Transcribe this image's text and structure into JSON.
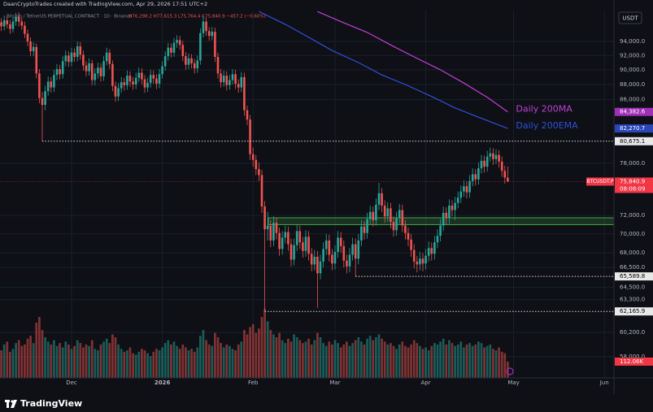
{
  "header": {
    "watermark": "DaanCryptoTrades created with TradingView.com, Apr 29, 2026 17:51 UTC+2",
    "symbol": "Bitcoin / TetherUS PERPETUAL CONTRACT · 1D · Binance",
    "ohlc": "O76,298.2 H77,615.3 L75,764.4 C75,840.9 −457.2 (−0.60%)",
    "currency": "USDT"
  },
  "footer": {
    "logo": "TradingView"
  },
  "chart_data": {
    "type": "candlestick",
    "log_scale": true,
    "grid": true,
    "up_color": "#26a69a",
    "down_color": "#ef5350",
    "xlim": [
      0.56,
      210.28
    ],
    "xticks": [
      {
        "value": 25,
        "label": "Dec"
      },
      {
        "value": 56,
        "label": "2026"
      },
      {
        "value": 87,
        "label": "Feb"
      },
      {
        "value": 115,
        "label": "Mar"
      },
      {
        "value": 146,
        "label": "Apr"
      },
      {
        "value": 176,
        "label": "May"
      },
      {
        "value": 207,
        "label": "Jun"
      }
    ],
    "ylim": [
      56150,
      98550
    ],
    "yticks": [
      {
        "value": 94000,
        "label": "94,000.0"
      },
      {
        "value": 92000,
        "label": "92,000.0"
      },
      {
        "value": 90000,
        "label": "90,000.0"
      },
      {
        "value": 88000,
        "label": "88,000.0"
      },
      {
        "value": 86000,
        "label": "86,000.0"
      },
      {
        "value": 78000,
        "label": "78,000.0"
      },
      {
        "value": 72000,
        "label": "72,000.0"
      },
      {
        "value": 70000,
        "label": "70,000.0"
      },
      {
        "value": 68000,
        "label": "68,000.0"
      },
      {
        "value": 66500,
        "label": "66,500.0"
      },
      {
        "value": 64500,
        "label": "64,500.0"
      },
      {
        "value": 63300,
        "label": "63,300.0"
      },
      {
        "value": 60200,
        "label": "60,200.0"
      },
      {
        "value": 58000,
        "label": "58,000.0"
      }
    ],
    "candles": {
      "open": [
        97300,
        96800,
        96200,
        97100,
        96500,
        95800,
        96900,
        97600,
        96900,
        96300,
        95100,
        94000,
        92600,
        93200,
        89500,
        86200,
        85300,
        87100,
        88400,
        87600,
        89300,
        90100,
        89400,
        91200,
        92000,
        91100,
        92400,
        91800,
        93300,
        92100,
        90600,
        89800,
        90900,
        88600,
        89500,
        90300,
        89100,
        91200,
        92400,
        90800,
        87800,
        86400,
        87500,
        88300,
        87900,
        89200,
        88400,
        88000,
        88900,
        89600,
        88700,
        87600,
        88200,
        89300,
        88800,
        88100,
        89400,
        90500,
        91900,
        93100,
        92400,
        93800,
        94200,
        93500,
        91900,
        90700,
        91600,
        90900,
        90200,
        91300,
        95200,
        96900,
        95500,
        94800,
        95400,
        91800,
        89500,
        88300,
        89200,
        87900,
        88600,
        89400,
        88100,
        87600,
        89000,
        84600,
        83400,
        79100,
        78400,
        77300,
        76600,
        73000,
        70500,
        70900,
        69300,
        71200,
        70100,
        68400,
        69600,
        70200,
        68900,
        67300,
        68800,
        70300,
        69100,
        68200,
        69700,
        67900,
        66800,
        67600,
        65900,
        67100,
        68400,
        69300,
        67800,
        66900,
        68100,
        69600,
        68700,
        67200,
        66600,
        67800,
        68900,
        67400,
        69300,
        70800,
        70100,
        71600,
        72400,
        71500,
        73200,
        74500,
        73100,
        71900,
        72800,
        71300,
        70400,
        71700,
        72600,
        70900,
        70100,
        69400,
        68300,
        67100,
        66800,
        67400,
        66900,
        67700,
        68500,
        67900,
        69100,
        69800,
        70900,
        72300,
        71700,
        73100,
        72600,
        73400,
        74000,
        74700,
        75300,
        74600,
        75900,
        76700,
        76100,
        77400,
        78300,
        77600,
        78800,
        79200,
        78500,
        79000,
        78200,
        77100,
        76298.2
      ],
      "high": [
        97900,
        97400,
        97800,
        97700,
        97100,
        97500,
        98200,
        98300,
        97500,
        96900,
        95700,
        94600,
        93900,
        93700,
        90100,
        87000,
        87800,
        89100,
        89000,
        90000,
        90800,
        90700,
        91900,
        92700,
        92600,
        93100,
        93000,
        94000,
        93900,
        92700,
        91200,
        91600,
        91400,
        90200,
        91000,
        90900,
        91900,
        93100,
        92900,
        91300,
        88400,
        88200,
        89000,
        88900,
        89900,
        89800,
        89000,
        89600,
        90300,
        90200,
        89300,
        88900,
        90000,
        89900,
        89400,
        90100,
        91200,
        92600,
        93800,
        93700,
        94500,
        94900,
        94800,
        94100,
        92500,
        92300,
        92200,
        91500,
        92000,
        95900,
        97800,
        97500,
        96100,
        96100,
        96000,
        92400,
        90100,
        89900,
        89800,
        89300,
        90100,
        90000,
        88700,
        89700,
        89600,
        85200,
        84000,
        79900,
        79000,
        78100,
        77200,
        73600,
        72400,
        71500,
        71900,
        71800,
        70700,
        70300,
        70900,
        70800,
        69500,
        69500,
        71000,
        70900,
        69700,
        70400,
        70300,
        68500,
        68300,
        68200,
        67800,
        69100,
        70000,
        69900,
        68400,
        68800,
        70300,
        70200,
        69300,
        67800,
        68500,
        69600,
        69500,
        70000,
        71500,
        71400,
        72300,
        73100,
        73000,
        73900,
        75700,
        75100,
        73700,
        73500,
        73400,
        71900,
        72400,
        73300,
        73200,
        71500,
        70700,
        70000,
        68900,
        67700,
        68100,
        68000,
        68400,
        69200,
        69100,
        69800,
        70500,
        71600,
        73000,
        72900,
        73800,
        73700,
        74100,
        74700,
        75400,
        76000,
        75900,
        76600,
        77400,
        77300,
        78100,
        79000,
        78900,
        79500,
        79900,
        79800,
        79700,
        79600,
        78800,
        77700,
        77615.3
      ],
      "low": [
        96100,
        95500,
        95600,
        95900,
        95100,
        95300,
        96300,
        96200,
        95700,
        94500,
        93300,
        91900,
        91900,
        88800,
        85500,
        80675.1,
        84600,
        86500,
        86900,
        87000,
        88600,
        88700,
        88800,
        90500,
        90400,
        90500,
        91100,
        91200,
        91400,
        89900,
        89100,
        89200,
        87900,
        87900,
        88800,
        88400,
        88500,
        90600,
        90100,
        87100,
        85700,
        85800,
        86900,
        87200,
        87300,
        87700,
        87300,
        87400,
        88300,
        88000,
        86900,
        87000,
        87600,
        88100,
        87400,
        87500,
        88800,
        89900,
        91300,
        91700,
        91800,
        93100,
        92800,
        91200,
        90000,
        90100,
        90200,
        89500,
        89600,
        90700,
        94600,
        94800,
        94100,
        94200,
        91100,
        88800,
        87600,
        87700,
        87200,
        87300,
        88000,
        87400,
        86900,
        87000,
        83900,
        82700,
        78400,
        77600,
        76600,
        75900,
        72300,
        62165.9,
        69300,
        68600,
        68700,
        69400,
        67700,
        67800,
        69000,
        68200,
        66600,
        66700,
        68200,
        68400,
        67500,
        67600,
        67200,
        66100,
        66200,
        62500,
        65300,
        66500,
        67800,
        67100,
        66200,
        66300,
        67500,
        68000,
        66500,
        65900,
        66000,
        67200,
        65589.8,
        66800,
        68700,
        69400,
        69500,
        71000,
        70800,
        70900,
        72600,
        72400,
        71200,
        71300,
        70600,
        69700,
        69800,
        71100,
        70200,
        69400,
        68700,
        67600,
        66400,
        66000,
        66200,
        66100,
        66300,
        67100,
        67200,
        67300,
        68500,
        69200,
        70300,
        71000,
        71100,
        71900,
        71500,
        72800,
        73400,
        74100,
        73900,
        74000,
        75300,
        75400,
        75500,
        76800,
        76900,
        77000,
        78200,
        77800,
        77900,
        77500,
        76400,
        75600,
        75764.4
      ],
      "close": [
        96800,
        96200,
        97100,
        96500,
        95800,
        96900,
        97600,
        96900,
        96300,
        95100,
        94000,
        92600,
        93200,
        89500,
        86200,
        85300,
        87100,
        88400,
        87600,
        89300,
        90100,
        89400,
        91200,
        92000,
        91100,
        92400,
        91800,
        93300,
        92100,
        90600,
        89800,
        90900,
        88600,
        89500,
        90300,
        89100,
        91200,
        92400,
        90800,
        87800,
        86400,
        87500,
        88300,
        87900,
        89200,
        88400,
        88000,
        88900,
        89600,
        88700,
        87600,
        88200,
        89300,
        88800,
        88100,
        89400,
        90500,
        91900,
        93100,
        92400,
        93800,
        94200,
        93500,
        91900,
        90700,
        91600,
        90900,
        90200,
        91300,
        95200,
        96900,
        95500,
        94800,
        95400,
        91800,
        89500,
        88300,
        89200,
        87900,
        88600,
        89400,
        88100,
        87600,
        89000,
        84600,
        83400,
        79100,
        78400,
        77300,
        76600,
        73000,
        70500,
        70900,
        69300,
        71200,
        70100,
        68400,
        69600,
        70200,
        68900,
        67300,
        68800,
        70300,
        69100,
        68200,
        69700,
        67900,
        66800,
        67600,
        65900,
        67100,
        68400,
        69300,
        67800,
        66900,
        68100,
        69600,
        68700,
        67200,
        66600,
        67800,
        68900,
        67400,
        69300,
        70800,
        70100,
        71600,
        72400,
        71500,
        73200,
        74500,
        73100,
        71900,
        72800,
        71300,
        70400,
        71700,
        72600,
        70900,
        70100,
        69400,
        68300,
        67100,
        66800,
        67400,
        66900,
        67700,
        68500,
        67900,
        69100,
        69800,
        70900,
        72300,
        71700,
        73100,
        72600,
        73400,
        74000,
        74700,
        75300,
        74600,
        75900,
        76700,
        76100,
        77400,
        78300,
        77600,
        78800,
        79200,
        78500,
        79000,
        78200,
        77100,
        76298.1,
        75840.9
      ]
    },
    "volume": {
      "ylim": [
        0,
        560
      ],
      "last_label": "112.06K",
      "label_color": "#f23645",
      "values": [
        210,
        190,
        230,
        250,
        180,
        200,
        240,
        260,
        220,
        230,
        270,
        290,
        240,
        380,
        420,
        330,
        280,
        250,
        230,
        260,
        220,
        240,
        210,
        250,
        230,
        200,
        220,
        260,
        240,
        210,
        230,
        220,
        260,
        200,
        190,
        230,
        250,
        270,
        240,
        300,
        280,
        230,
        200,
        180,
        190,
        210,
        170,
        160,
        180,
        200,
        190,
        170,
        150,
        180,
        200,
        190,
        210,
        240,
        260,
        230,
        250,
        220,
        200,
        230,
        210,
        190,
        200,
        180,
        210,
        290,
        330,
        260,
        230,
        220,
        310,
        280,
        240,
        210,
        230,
        220,
        200,
        190,
        230,
        250,
        330,
        300,
        350,
        370,
        310,
        340,
        420,
        476,
        390,
        330,
        300,
        280,
        310,
        260,
        240,
        270,
        250,
        300,
        280,
        260,
        240,
        250,
        270,
        230,
        260,
        310,
        280,
        240,
        220,
        250,
        230,
        260,
        240,
        210,
        230,
        250,
        220,
        240,
        260,
        280,
        250,
        230,
        270,
        290,
        260,
        280,
        300,
        270,
        250,
        230,
        240,
        220,
        200,
        230,
        250,
        220,
        210,
        230,
        260,
        240,
        220,
        200,
        210,
        190,
        220,
        240,
        230,
        250,
        270,
        230,
        260,
        240,
        220,
        230,
        250,
        210,
        230,
        240,
        220,
        230,
        250,
        240,
        210,
        220,
        230,
        200,
        190,
        210,
        180,
        170,
        112.06
      ]
    },
    "series": [
      {
        "name": "Daily 200MA",
        "color": "#c23fd8",
        "x": [
          109,
          117,
          126,
          134,
          142,
          151,
          159,
          167,
          174
        ],
        "values": [
          98400,
          96900,
          95300,
          93500,
          91800,
          90000,
          88200,
          86300,
          84382.6
        ]
      },
      {
        "name": "Daily 200EMA",
        "color": "#2f50d8",
        "x": [
          89,
          98,
          106,
          114,
          123,
          131,
          139,
          148,
          156,
          164,
          174
        ],
        "values": [
          98400,
          96500,
          94600,
          92700,
          91000,
          89300,
          88000,
          86400,
          84900,
          83700,
          82270.7
        ]
      }
    ],
    "levels": [
      80675.1,
      65589.8,
      62165.9
    ],
    "zone": [
      71000,
      71750
    ],
    "price_labels": [
      {
        "value": 84382.6,
        "label": "84,382.6",
        "bg": "#a12fb8",
        "fg": "#ffffff"
      },
      {
        "value": 82270.7,
        "label": "82,270.7",
        "bg": "#2b46b8",
        "fg": "#ffffff"
      },
      {
        "value": 80675.1,
        "label": "80,675.1",
        "bg": "#e8e8e8",
        "fg": "#000000"
      },
      {
        "value": 75840.9,
        "label": "75,840.9",
        "bg": "#f23645",
        "fg": "#ffffff",
        "tag": "BTCUSDT.P",
        "sub": "08:08:09"
      },
      {
        "value": 65589.8,
        "label": "65,589.8",
        "bg": "#e8e8e8",
        "fg": "#000000"
      },
      {
        "value": 62165.9,
        "label": "62,165.9",
        "bg": "#e8e8e8",
        "fg": "#000000"
      }
    ]
  }
}
